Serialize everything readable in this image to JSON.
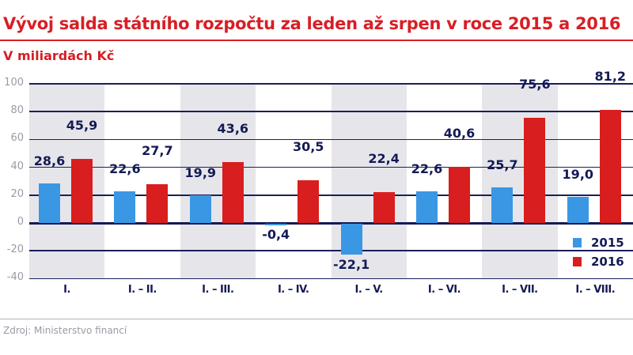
{
  "header": {
    "title": "Vývoj salda státního rozpočtu za leden až srpen v roce 2015 a 2016",
    "subtitle": "V miliardách Kč"
  },
  "colors": {
    "accent": "#d81e25",
    "series_2015": "#3a97e4",
    "series_2016": "#d81e1e",
    "text_dark": "#141a55",
    "band": "#e6e6ea",
    "axis_tick": "#9a9aa6"
  },
  "footer": {
    "source": "Zdroj: Ministerstvo financí"
  },
  "legend": [
    {
      "label": "2015",
      "color": "#3a97e4"
    },
    {
      "label": "2016",
      "color": "#d81e1e"
    }
  ],
  "yaxis": {
    "ticks": [
      "100",
      "80",
      "60",
      "40",
      "20",
      "0",
      "-20",
      "-40"
    ]
  },
  "chart_data": {
    "type": "bar",
    "title": "Vývoj salda státního rozpočtu za leden až srpen v roce 2015 a 2016",
    "subtitle": "V miliardách Kč",
    "xlabel": "",
    "ylabel": "",
    "ylim": [
      -40,
      100
    ],
    "yticks": [
      -40,
      -20,
      0,
      20,
      40,
      60,
      80,
      100
    ],
    "grid": true,
    "legend_position": "bottom-right inside",
    "categories": [
      "I.",
      "I. – II.",
      "I. – III.",
      "I. – IV.",
      "I. – V.",
      "I. – VI.",
      "I. – VII.",
      "I. – VIII."
    ],
    "series": [
      {
        "name": "2015",
        "values": [
          28.6,
          22.6,
          19.9,
          -0.4,
          -22.1,
          22.6,
          25.7,
          19.0
        ],
        "labels": [
          "28,6",
          "22,6",
          "19,9",
          "-0,4",
          "-22,1",
          "22,6",
          "25,7",
          "19,0"
        ]
      },
      {
        "name": "2016",
        "values": [
          45.9,
          27.7,
          43.6,
          30.5,
          22.4,
          40.6,
          75.6,
          81.2
        ],
        "labels": [
          "45,9",
          "27,7",
          "43,6",
          "30,5",
          "22,4",
          "40,6",
          "75,6",
          "81,2"
        ]
      }
    ],
    "annotations": [
      "Zdroj: Ministerstvo financí"
    ]
  }
}
